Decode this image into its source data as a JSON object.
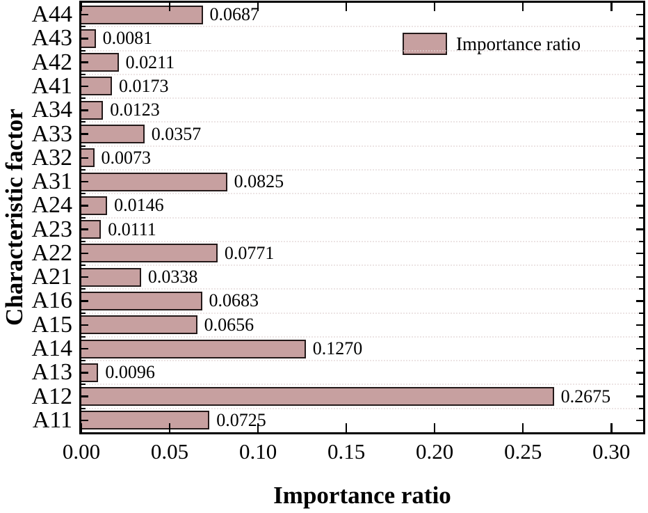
{
  "chart_data": {
    "type": "bar",
    "orientation": "horizontal",
    "title": "",
    "xlabel": "Importance ratio",
    "ylabel": "Characteristic factor",
    "legend": {
      "label": "Importance ratio"
    },
    "categories": [
      "A44",
      "A43",
      "A42",
      "A41",
      "A34",
      "A33",
      "A32",
      "A31",
      "A24",
      "A23",
      "A22",
      "A21",
      "A16",
      "A15",
      "A14",
      "A13",
      "A12",
      "A11"
    ],
    "values": [
      0.0687,
      0.0081,
      0.0211,
      0.0173,
      0.0123,
      0.0357,
      0.0073,
      0.0825,
      0.0146,
      0.0111,
      0.0771,
      0.0338,
      0.0683,
      0.0656,
      0.127,
      0.0096,
      0.2675,
      0.0725
    ],
    "value_labels": [
      "0.0687",
      "0.0081",
      "0.0211",
      "0.0173",
      "0.0123",
      "0.0357",
      "0.0073",
      "0.0825",
      "0.0146",
      "0.0111",
      "0.0771",
      "0.0338",
      "0.0683",
      "0.0656",
      "0.1270",
      "0.0096",
      "0.2675",
      "0.0725"
    ],
    "xlim": [
      0,
      0.318
    ],
    "xtick_values": [
      0,
      0.05,
      0.1,
      0.15,
      0.2,
      0.25,
      0.3
    ],
    "xtick_labels": [
      "0.00",
      "0.05",
      "0.10",
      "0.15",
      "0.20",
      "0.25",
      "0.30"
    ],
    "grid": "horizontal-dotted-at-band-boundaries",
    "legend_position": "upper-right-inside",
    "colors": {
      "bar_fill": "#c7a0a0",
      "bar_border": "#231919",
      "axis": "#000000",
      "gridline": "#e3d6d6",
      "text": "#000000"
    }
  }
}
